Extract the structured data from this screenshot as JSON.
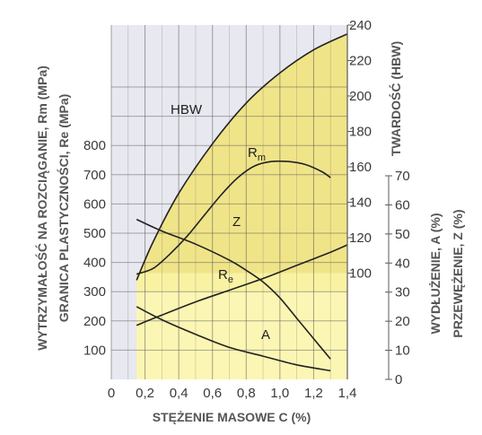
{
  "chart_data": {
    "type": "line",
    "title": "",
    "colors": {
      "grid_background": "#e8e8f0",
      "grid_line": "#5a5a5a",
      "hbw_region": "#c2ad82",
      "strength_region": "#fff58a",
      "strength_region_light": "#fff9c2",
      "curve": "#222222",
      "tick_text": "#3a3a3a",
      "title_text": "#555555"
    },
    "x_axis": {
      "label": "STĘŻENIE MASOWE C (%)",
      "range": [
        0,
        1.4
      ],
      "ticks": [
        "0",
        "0,2",
        "0,4",
        "0,6",
        "0,8",
        "1,0",
        "1,2",
        "1,4"
      ],
      "tick_values": [
        0,
        0.2,
        0.4,
        0.6,
        0.8,
        1.0,
        1.2,
        1.4
      ]
    },
    "left_axis": {
      "label_1": "WYTRZYMAŁOŚĆ NA ROZCIĄGANIE, Rm (MPa)",
      "label_2": "GRANICA PLASTYCZNOŚCI, Re (MPa)",
      "range": [
        0,
        1000
      ],
      "ticks": [
        "100",
        "200",
        "300",
        "400",
        "500",
        "600",
        "700",
        "800"
      ],
      "tick_values": [
        100,
        200,
        300,
        400,
        500,
        600,
        700,
        800
      ]
    },
    "hardness_axis": {
      "label": "TWARDOŚĆ (HBW)",
      "range": [
        40,
        240
      ],
      "ticks": [
        "100",
        "120",
        "140",
        "160",
        "180",
        "200",
        "220",
        "240"
      ],
      "tick_values": [
        100,
        120,
        140,
        160,
        180,
        200,
        220,
        240
      ]
    },
    "percent_axis": {
      "label_1": "WYDŁUŻENIE, A (%)",
      "label_2": "PRZEWĘŻENIE, Z (%)",
      "range": [
        0,
        70
      ],
      "ticks": [
        "0",
        "10",
        "20",
        "30",
        "40",
        "50",
        "60",
        "70"
      ],
      "tick_values": [
        0,
        10,
        20,
        30,
        40,
        50,
        60,
        70
      ]
    },
    "series": [
      {
        "name": "HBW",
        "axis": "hardness",
        "x": [
          0.15,
          0.25,
          0.4,
          0.6,
          0.8,
          1.0,
          1.2,
          1.4
        ],
        "y": [
          96,
          118,
          145,
          173,
          196,
          213,
          226,
          235
        ]
      },
      {
        "name": "Rm",
        "axis": "left",
        "x": [
          0.15,
          0.25,
          0.35,
          0.45,
          0.55,
          0.65,
          0.75,
          0.85,
          0.95,
          1.05,
          1.15,
          1.25,
          1.3
        ],
        "y": [
          360,
          380,
          430,
          490,
          560,
          630,
          690,
          730,
          745,
          745,
          735,
          710,
          690
        ]
      },
      {
        "name": "Re",
        "axis": "left",
        "x": [
          0.15,
          0.3,
          0.5,
          0.7,
          0.9,
          1.1,
          1.3,
          1.4
        ],
        "y": [
          185,
          220,
          265,
          305,
          345,
          390,
          435,
          460
        ]
      },
      {
        "name": "Z",
        "axis": "percent",
        "x": [
          0.15,
          0.3,
          0.5,
          0.7,
          0.8,
          0.9,
          1.0,
          1.1,
          1.2,
          1.3
        ],
        "y": [
          55,
          51,
          46.5,
          41,
          37.5,
          33.5,
          28,
          21,
          14,
          7
        ]
      },
      {
        "name": "A",
        "axis": "percent",
        "x": [
          0.15,
          0.3,
          0.5,
          0.7,
          0.9,
          1.1,
          1.3
        ],
        "y": [
          25,
          20.5,
          15.5,
          11,
          8,
          5,
          3
        ]
      }
    ]
  }
}
